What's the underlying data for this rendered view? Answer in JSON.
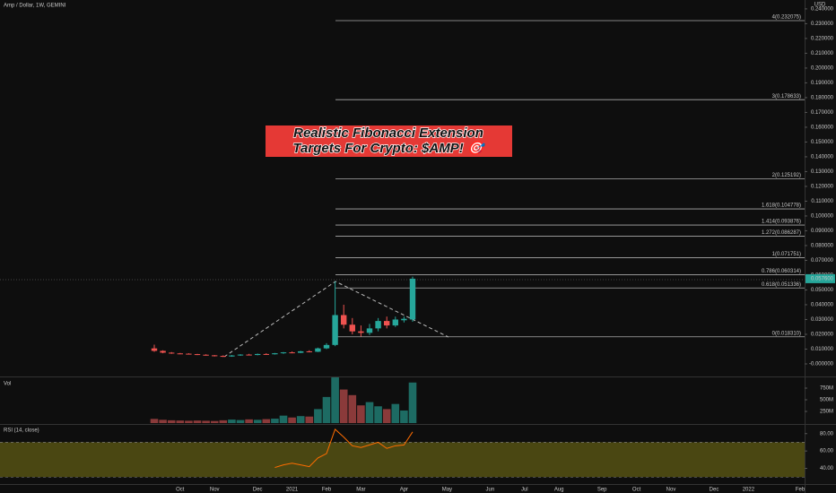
{
  "chart_data": [
    {
      "type": "candlestick",
      "title": "Amp / Dollar, 1W, GEMINI",
      "y_label": "USD",
      "categories": [
        null,
        null,
        null,
        "Oct",
        null,
        null,
        null,
        "Nov",
        null,
        null,
        null,
        null,
        "Dec",
        null,
        null,
        null,
        "2021",
        null,
        null,
        null,
        "Feb",
        null,
        null,
        null,
        "Mar",
        null,
        null,
        null,
        null,
        "Apr",
        null,
        null,
        null,
        null,
        "May",
        null,
        null,
        null,
        null,
        "Jun",
        null,
        null,
        null,
        "Jul",
        null,
        null,
        null,
        "Aug",
        null,
        null,
        null,
        null,
        "Sep",
        null,
        null,
        null,
        "Oct",
        null,
        null,
        null,
        "Nov",
        null,
        null,
        null,
        null,
        "Dec",
        null,
        null,
        null,
        "2022",
        null,
        null,
        null,
        null,
        null,
        "Feb"
      ],
      "open": [
        0.0105,
        0.0088,
        0.0076,
        0.0071,
        0.0069,
        0.0066,
        0.0062,
        0.0058,
        0.0054,
        0.005,
        0.0057,
        0.0063,
        0.006,
        0.0067,
        0.0065,
        0.0072,
        0.0078,
        0.0075,
        0.0085,
        0.0082,
        0.0105,
        0.0128,
        0.033,
        0.0265,
        0.022,
        0.021,
        0.024,
        0.029,
        0.026,
        0.0295,
        0.03,
        null,
        null,
        null,
        null,
        null,
        null,
        null,
        null,
        null,
        null,
        null,
        null,
        null,
        null,
        null,
        null,
        null,
        null,
        null,
        null,
        null,
        null,
        null,
        null,
        null,
        null,
        null,
        null,
        null,
        null,
        null,
        null,
        null,
        null,
        null,
        null,
        null,
        null,
        null,
        null,
        null,
        null,
        null,
        null,
        null
      ],
      "high": [
        0.013,
        0.0092,
        0.008,
        0.0074,
        0.0072,
        0.0068,
        0.0065,
        0.006,
        0.0058,
        0.006,
        0.0066,
        0.0068,
        0.007,
        0.0072,
        0.0074,
        0.008,
        0.0084,
        0.0088,
        0.0092,
        0.011,
        0.014,
        0.0558,
        0.04,
        0.031,
        0.026,
        0.027,
        0.031,
        0.032,
        0.032,
        0.032,
        0.059,
        null,
        null,
        null,
        null,
        null,
        null,
        null,
        null,
        null,
        null,
        null,
        null,
        null,
        null,
        null,
        null,
        null,
        null,
        null,
        null,
        null,
        null,
        null,
        null,
        null,
        null,
        null,
        null,
        null,
        null,
        null,
        null,
        null,
        null,
        null,
        null,
        null,
        null,
        null,
        null,
        null,
        null,
        null,
        null,
        null
      ],
      "low": [
        0.0082,
        0.0072,
        0.0068,
        0.0066,
        0.0064,
        0.006,
        0.0056,
        0.005,
        0.0046,
        0.0048,
        0.0054,
        0.0058,
        0.0058,
        0.0062,
        0.0063,
        0.0068,
        0.0072,
        0.0073,
        0.0078,
        0.008,
        0.01,
        0.012,
        0.024,
        0.02,
        0.0185,
        0.0195,
        0.022,
        0.024,
        0.025,
        0.028,
        0.0285,
        null,
        null,
        null,
        null,
        null,
        null,
        null,
        null,
        null,
        null,
        null,
        null,
        null,
        null,
        null,
        null,
        null,
        null,
        null,
        null,
        null,
        null,
        null,
        null,
        null,
        null,
        null,
        null,
        null,
        null,
        null,
        null,
        null,
        null,
        null,
        null,
        null,
        null,
        null,
        null,
        null,
        null,
        null,
        null,
        null
      ],
      "close": [
        0.0088,
        0.0076,
        0.0071,
        0.0069,
        0.0066,
        0.0062,
        0.0058,
        0.0054,
        0.005,
        0.0057,
        0.0063,
        0.006,
        0.0067,
        0.0065,
        0.0072,
        0.0078,
        0.0075,
        0.0085,
        0.0082,
        0.0105,
        0.0128,
        0.033,
        0.0265,
        0.022,
        0.021,
        0.024,
        0.029,
        0.026,
        0.03,
        0.0305,
        0.0576,
        null,
        null,
        null,
        null,
        null,
        null,
        null,
        null,
        null,
        null,
        null,
        null,
        null,
        null,
        null,
        null,
        null,
        null,
        null,
        null,
        null,
        null,
        null,
        null,
        null,
        null,
        null,
        null,
        null,
        null,
        null,
        null,
        null,
        null,
        null,
        null,
        null,
        null,
        null,
        null,
        null,
        null,
        null,
        null,
        null
      ],
      "up_color": "#26a69a",
      "down_color": "#ef5350",
      "ylim": [
        -0.0085,
        0.246
      ],
      "yticks": [
        {
          "value": 0,
          "label": "-0.000000"
        },
        {
          "value": 0.01,
          "label": "0.010000"
        },
        {
          "value": 0.02,
          "label": "0.020000"
        },
        {
          "value": 0.03,
          "label": "0.030000"
        },
        {
          "value": 0.04,
          "label": "0.040000"
        },
        {
          "value": 0.05,
          "label": "0.050000"
        },
        {
          "value": 0.06,
          "label": "0.060000"
        },
        {
          "value": 0.07,
          "label": "0.070000"
        },
        {
          "value": 0.08,
          "label": "0.080000"
        },
        {
          "value": 0.09,
          "label": "0.090000"
        },
        {
          "value": 0.1,
          "label": "0.100000"
        },
        {
          "value": 0.11,
          "label": "0.110000"
        },
        {
          "value": 0.12,
          "label": "0.120000"
        },
        {
          "value": 0.13,
          "label": "0.130000"
        },
        {
          "value": 0.14,
          "label": "0.140000"
        },
        {
          "value": 0.15,
          "label": "0.150000"
        },
        {
          "value": 0.16,
          "label": "0.160000"
        },
        {
          "value": 0.17,
          "label": "0.170000"
        },
        {
          "value": 0.18,
          "label": "0.180000"
        },
        {
          "value": 0.19,
          "label": "0.190000"
        },
        {
          "value": 0.2,
          "label": "0.200000"
        },
        {
          "value": 0.21,
          "label": "0.210000"
        },
        {
          "value": 0.22,
          "label": "0.220000"
        },
        {
          "value": 0.23,
          "label": "0.230000"
        },
        {
          "value": 0.24,
          "label": "0.240000"
        }
      ],
      "fib_levels": [
        {
          "value": 0.232075,
          "label": "4(0.232075)"
        },
        {
          "value": 0.178633,
          "label": "3(0.178633)"
        },
        {
          "value": 0.125192,
          "label": "2(0.125192)"
        },
        {
          "value": 0.104778,
          "label": "1.618(0.104778)"
        },
        {
          "value": 0.093876,
          "label": "1.414(0.093876)"
        },
        {
          "value": 0.086287,
          "label": "1.272(0.086287)"
        },
        {
          "value": 0.071751,
          "label": "1(0.071751)"
        },
        {
          "value": 0.060314,
          "label": "0.786(0.060314)"
        },
        {
          "value": 0.051336,
          "label": "0.618(0.051336)"
        },
        {
          "value": 0.01831,
          "label": "0(0.018310)"
        }
      ],
      "last_price": {
        "value": 0.0576,
        "label": "0.057600"
      },
      "annotation": [
        "Realistic Fibonacci Extension",
        "Targets For Crypto: $AMP! 🎯"
      ]
    },
    {
      "type": "bar",
      "title": "Vol",
      "values": [
        90000000,
        70000000,
        60000000,
        55000000,
        50000000,
        55000000,
        50000000,
        45000000,
        60000000,
        75000000,
        65000000,
        80000000,
        70000000,
        85000000,
        95000000,
        160000000,
        120000000,
        150000000,
        140000000,
        300000000,
        560000000,
        980000000,
        720000000,
        600000000,
        380000000,
        450000000,
        360000000,
        300000000,
        410000000,
        270000000,
        870000000,
        null,
        null,
        null,
        null,
        null,
        null,
        null,
        null,
        null,
        null,
        null,
        null,
        null,
        null,
        null,
        null,
        null,
        null,
        null,
        null,
        null,
        null,
        null,
        null,
        null,
        null,
        null,
        null,
        null,
        null,
        null,
        null,
        null,
        null,
        null,
        null,
        null,
        null,
        null,
        null,
        null,
        null,
        null,
        null,
        null
      ],
      "up_color": "#1d6b63",
      "down_color": "#8a3a3a",
      "ylim": [
        0,
        1000000000
      ],
      "yticks": [
        {
          "value": 250000000,
          "label": "250M"
        },
        {
          "value": 500000000,
          "label": "500M"
        },
        {
          "value": 750000000,
          "label": "750M"
        }
      ]
    },
    {
      "type": "line",
      "title": "RSI (14, close)",
      "values": [
        null,
        null,
        null,
        null,
        null,
        null,
        null,
        null,
        null,
        null,
        null,
        null,
        null,
        null,
        41,
        44,
        46,
        44,
        42,
        52,
        57,
        85,
        76,
        66,
        64,
        67,
        70,
        63,
        66,
        67,
        82,
        null,
        null,
        null,
        null,
        null,
        null,
        null,
        null,
        null,
        null,
        null,
        null,
        null,
        null,
        null,
        null,
        null,
        null,
        null,
        null,
        null,
        null,
        null,
        null,
        null,
        null,
        null,
        null,
        null,
        null,
        null,
        null,
        null,
        null,
        null,
        null,
        null,
        null,
        null,
        null,
        null,
        null,
        null,
        null,
        null
      ],
      "color": "#ff6d00",
      "band": [
        30,
        70
      ],
      "band_color": "#4a4712",
      "ylim": [
        22,
        88
      ],
      "yticks": [
        {
          "value": 40,
          "label": "40.00"
        },
        {
          "value": 60,
          "label": "60.00"
        },
        {
          "value": 80,
          "label": "80.00"
        }
      ]
    }
  ]
}
